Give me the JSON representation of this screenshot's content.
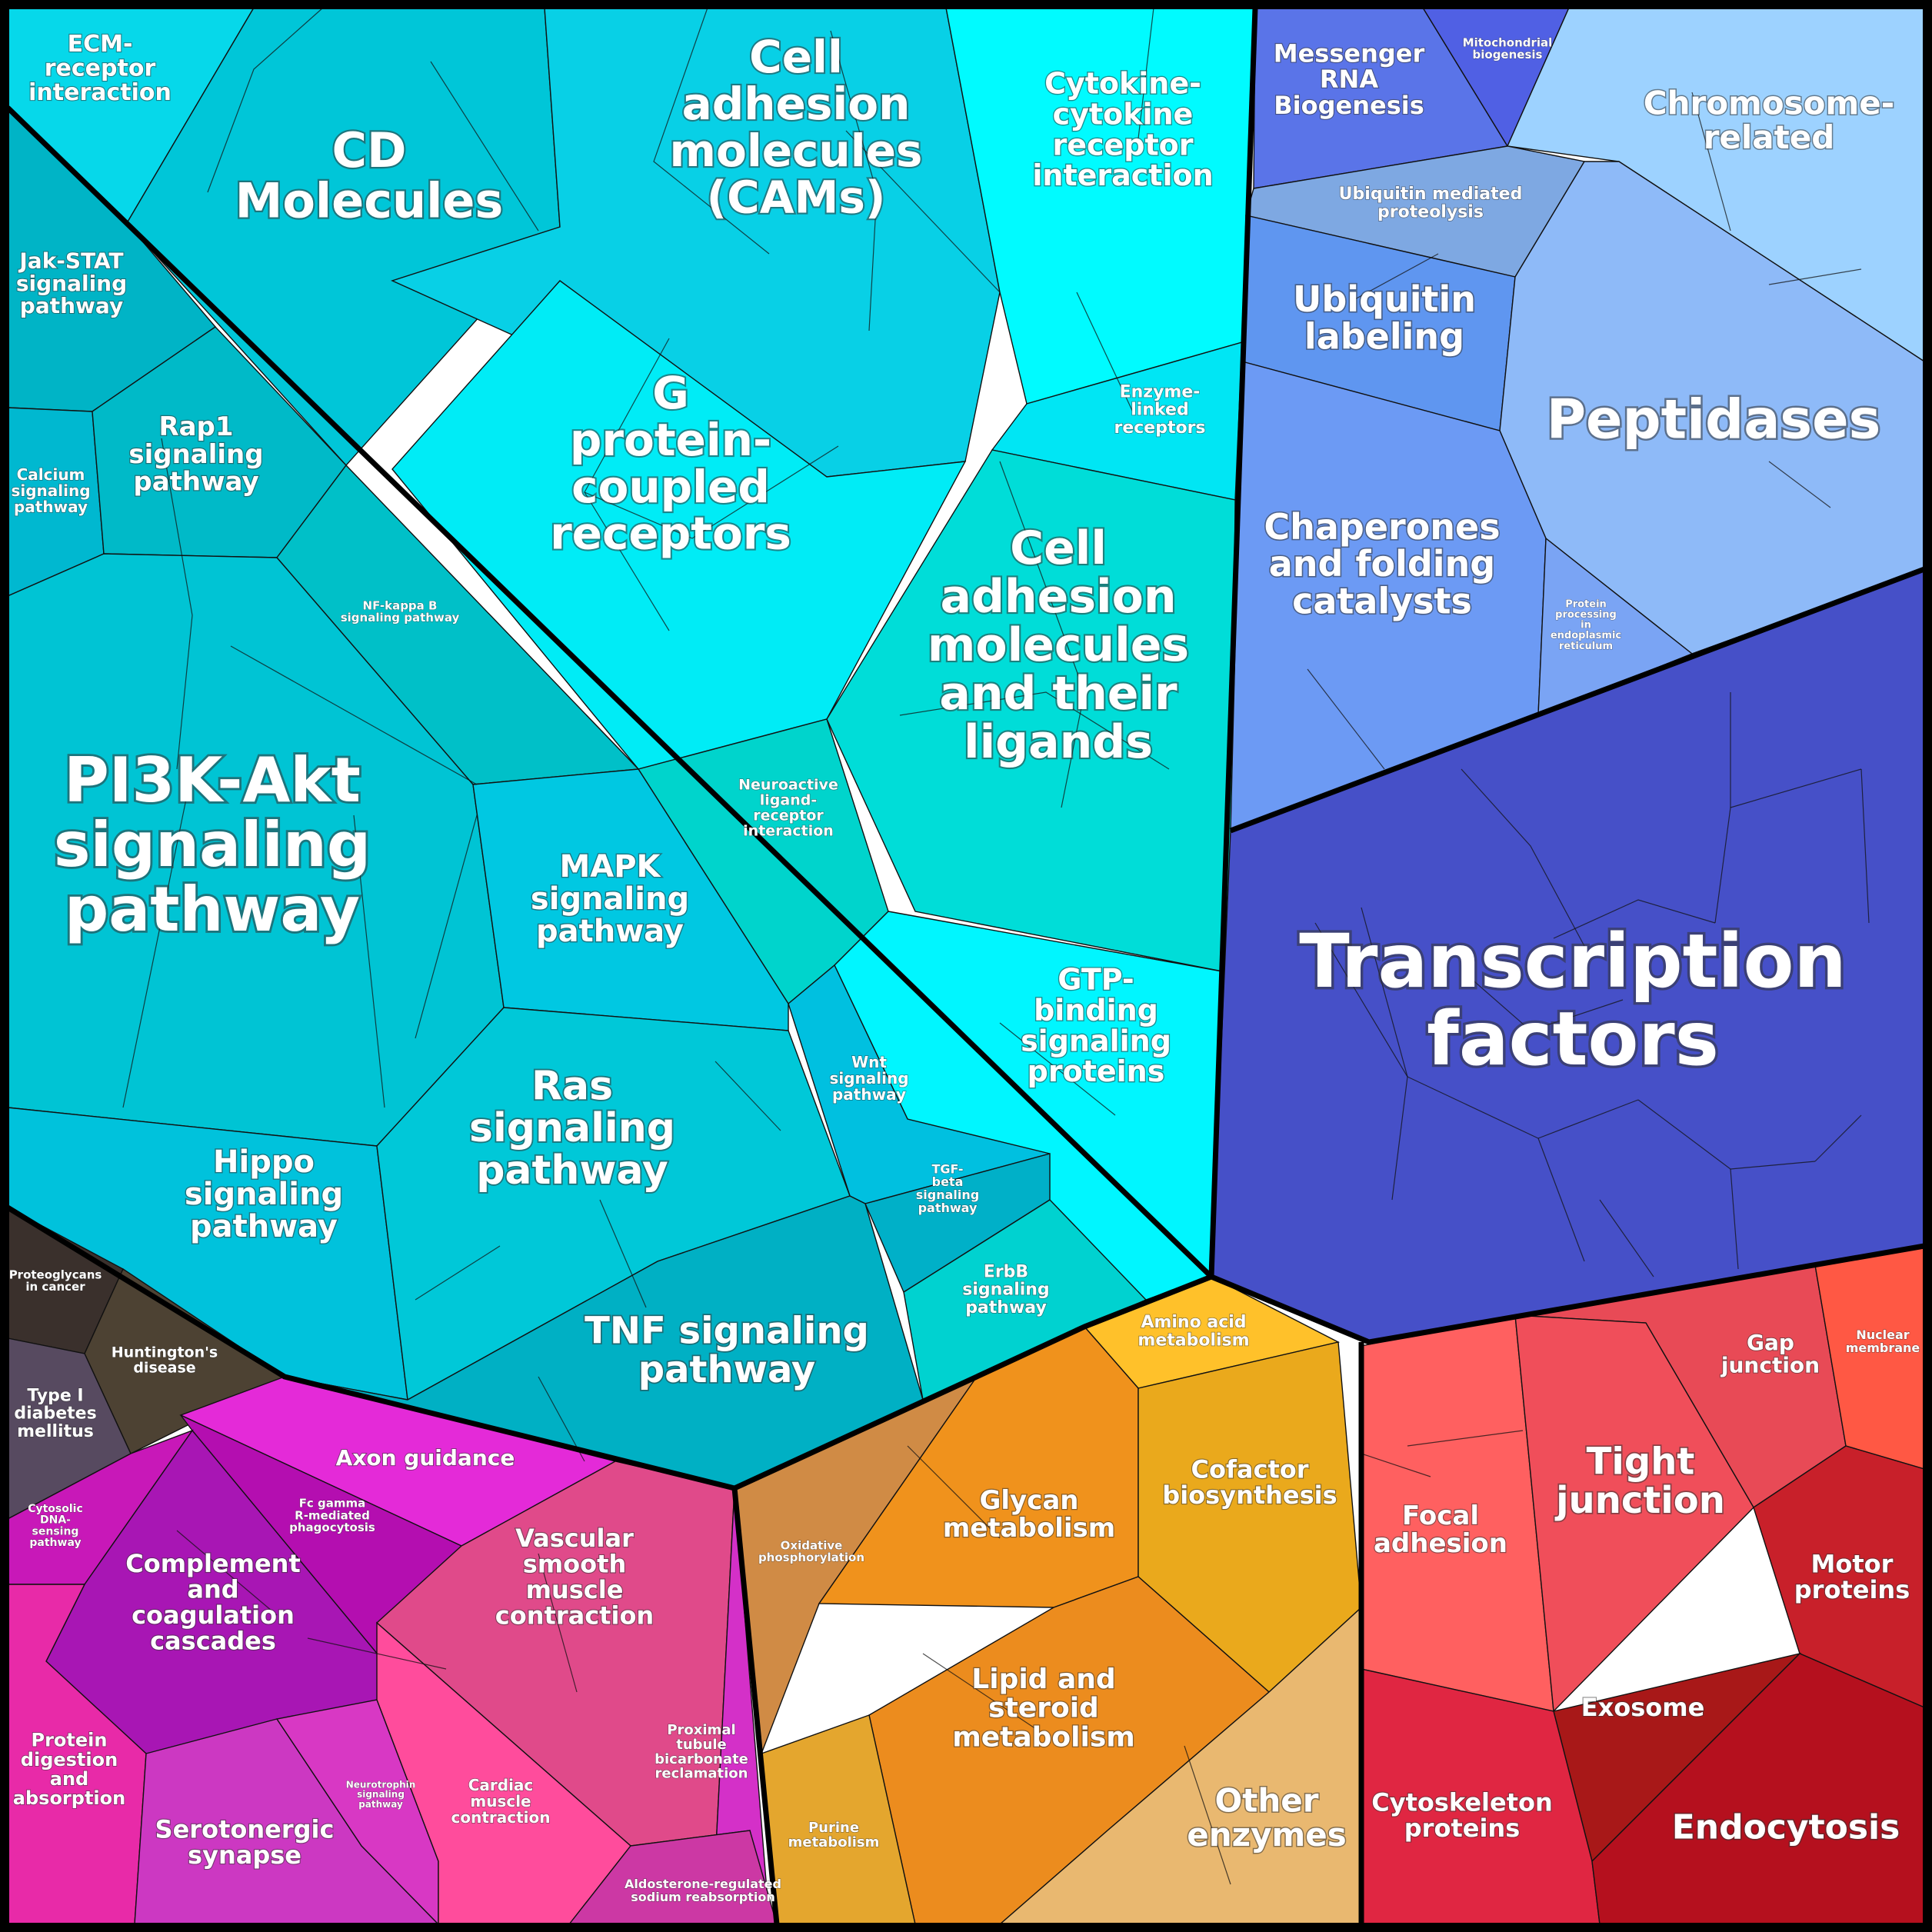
{
  "groups": [
    {
      "id": "signaling",
      "color": "#00ccdd"
    },
    {
      "id": "neuro-disease",
      "color": "#433a30"
    },
    {
      "id": "immune-tissue",
      "color": "#dd22cc"
    },
    {
      "id": "metabolism",
      "color": "#f0a020"
    },
    {
      "id": "genetic-processing",
      "color": "#6a8ff0"
    },
    {
      "id": "transcription",
      "color": "#4a55cc"
    },
    {
      "id": "cellular-structure",
      "color": "#e8404a"
    }
  ],
  "labels": {
    "ecm": [
      "ECM-",
      "receptor",
      "interaction"
    ],
    "cd": [
      "CD",
      "Molecules"
    ],
    "cams": [
      "Cell",
      "adhesion",
      "molecules",
      "(CAMs)"
    ],
    "cytokine": [
      "Cytokine-",
      "cytokine",
      "receptor",
      "interaction"
    ],
    "jak": [
      "Jak-STAT",
      "signaling",
      "pathway"
    ],
    "rap1": [
      "Rap1",
      "signaling",
      "pathway"
    ],
    "calcium": [
      "Calcium",
      "signaling",
      "pathway"
    ],
    "gpcr": [
      "G",
      "protein-",
      "coupled",
      "receptors"
    ],
    "enzyme_linked": [
      "Enzyme-",
      "linked",
      "receptors"
    ],
    "nfkb": [
      "NF-kappa B",
      "signaling pathway"
    ],
    "cam_ligands": [
      "Cell",
      "adhesion",
      "molecules",
      "and their",
      "ligands"
    ],
    "neuroactive": [
      "Neuroactive",
      "ligand-",
      "receptor",
      "interaction"
    ],
    "pi3k": [
      "PI3K-Akt",
      "signaling",
      "pathway"
    ],
    "mapk": [
      "MAPK",
      "signaling",
      "pathway"
    ],
    "wnt": [
      "Wnt",
      "signaling",
      "pathway"
    ],
    "gtp": [
      "GTP-",
      "binding",
      "signaling",
      "proteins"
    ],
    "ras": [
      "Ras",
      "signaling",
      "pathway"
    ],
    "tgf": [
      "TGF-",
      "beta",
      "signaling",
      "pathway"
    ],
    "hippo": [
      "Hippo",
      "signaling",
      "pathway"
    ],
    "erbb": [
      "ErbB",
      "signaling",
      "pathway"
    ],
    "tnf": [
      "TNF signaling",
      "pathway"
    ],
    "proteoglycans": [
      "Proteoglycans",
      "in cancer"
    ],
    "huntington": [
      "Huntington's",
      "disease"
    ],
    "t1d": [
      "Type I",
      "diabetes",
      "mellitus"
    ],
    "axon": [
      "Axon guidance"
    ],
    "fcgamma": [
      "Fc gamma",
      "R-mediated",
      "phagocytosis"
    ],
    "cytosolic": [
      "Cytosolic",
      "DNA-",
      "sensing",
      "pathway"
    ],
    "complement": [
      "Complement",
      "and",
      "coagulation",
      "cascades"
    ],
    "vascular": [
      "Vascular",
      "smooth",
      "muscle",
      "contraction"
    ],
    "protein_digestion": [
      "Protein",
      "digestion",
      "and",
      "absorption"
    ],
    "serotonergic": [
      "Serotonergic",
      "synapse"
    ],
    "neurotrophin": [
      "Neurotrophin",
      "signaling",
      "pathway"
    ],
    "cardiac": [
      "Cardiac",
      "muscle",
      "contraction"
    ],
    "proximal": [
      "Proximal",
      "tubule",
      "bicarbonate",
      "reclamation"
    ],
    "aldosterone": [
      "Aldosterone-regulated",
      "sodium reabsorption"
    ],
    "amino_acid": [
      "Amino acid",
      "metabolism"
    ],
    "oxidative": [
      "Oxidative",
      "phosphorylation"
    ],
    "glycan": [
      "Glycan",
      "metabolism"
    ],
    "cofactor": [
      "Cofactor",
      "biosynthesis"
    ],
    "lipid": [
      "Lipid and",
      "steroid",
      "metabolism"
    ],
    "purine": [
      "Purine",
      "metabolism"
    ],
    "other_enzymes": [
      "Other",
      "enzymes"
    ],
    "messenger_rna": [
      "Messenger",
      "RNA",
      "Biogenesis"
    ],
    "mito": [
      "Mitochondrial",
      "biogenesis"
    ],
    "chromosome": [
      "Chromosome-",
      "related"
    ],
    "ubiquitin_mediated": [
      "Ubiquitin mediated",
      "proteolysis"
    ],
    "ubiquitin_labeling": [
      "Ubiquitin",
      "labeling"
    ],
    "peptidases": [
      "Peptidases"
    ],
    "chaperones": [
      "Chaperones",
      "and folding",
      "catalysts"
    ],
    "protein_processing": [
      "Protein",
      "processing",
      "in",
      "endoplasmic",
      "reticulum"
    ],
    "transcription": [
      "Transcription",
      "factors"
    ],
    "gap": [
      "Gap",
      "junction"
    ],
    "nuclear": [
      "Nuclear",
      "membrane"
    ],
    "focal": [
      "Focal",
      "adhesion"
    ],
    "tight": [
      "Tight",
      "junction"
    ],
    "motor": [
      "Motor",
      "proteins"
    ],
    "exosome": [
      "Exosome"
    ],
    "cytoskeleton": [
      "Cytoskeleton",
      "proteins"
    ],
    "endocytosis": [
      "Endocytosis"
    ]
  }
}
